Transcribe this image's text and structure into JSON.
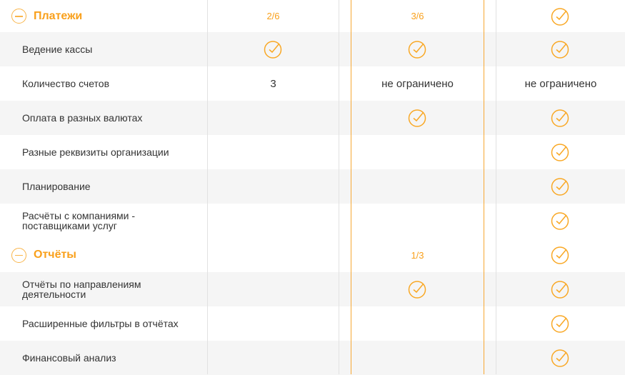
{
  "accent_color": "#f9a01b",
  "rows": [
    {
      "type": "section",
      "label": "Платежи",
      "cells": [
        "2/6",
        "3/6",
        "check"
      ]
    },
    {
      "type": "feature",
      "label": "Ведение кассы",
      "cells": [
        "check",
        "check",
        "check"
      ]
    },
    {
      "type": "feature",
      "label": "Количество счетов",
      "cells": [
        "3",
        "не ограничено",
        "не ограничено"
      ]
    },
    {
      "type": "feature",
      "label": "Оплата в разных валютах",
      "cells": [
        "",
        "check",
        "check"
      ]
    },
    {
      "type": "feature",
      "label": "Разные реквизиты организации",
      "cells": [
        "",
        "",
        "check"
      ]
    },
    {
      "type": "feature",
      "label": "Планирование",
      "cells": [
        "",
        "",
        "check"
      ]
    },
    {
      "type": "feature",
      "label": "Расчёты с компаниями - поставщиками услуг",
      "cells": [
        "",
        "",
        "check"
      ]
    },
    {
      "type": "section",
      "label": "Отчёты",
      "cells": [
        "",
        "1/3",
        "check"
      ]
    },
    {
      "type": "feature",
      "label": "Отчёты по направлениям деятельности",
      "cells": [
        "",
        "check",
        "check"
      ]
    },
    {
      "type": "feature",
      "label": "Расширенные фильтры в отчётах",
      "cells": [
        "",
        "",
        "check"
      ]
    },
    {
      "type": "feature",
      "label": "Финансовый анализ",
      "cells": [
        "",
        "",
        "check"
      ]
    }
  ]
}
